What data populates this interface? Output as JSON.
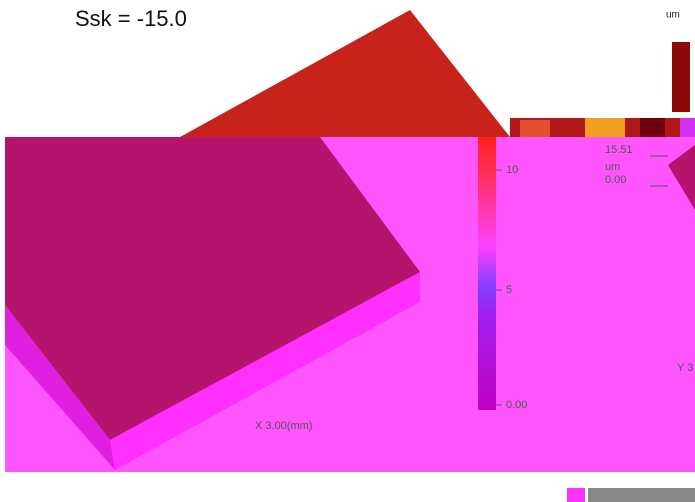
{
  "header": {
    "stat": "Ssk = -15.0",
    "unit": "um"
  },
  "colorbar": {
    "ticks": [
      "10",
      "5",
      "0.00"
    ]
  },
  "side_scale": {
    "max": "15.51",
    "unit": "um",
    "min": "0.00"
  },
  "axes": {
    "x_label": "X 3.00(mm)",
    "y_label": "Y 3"
  }
}
